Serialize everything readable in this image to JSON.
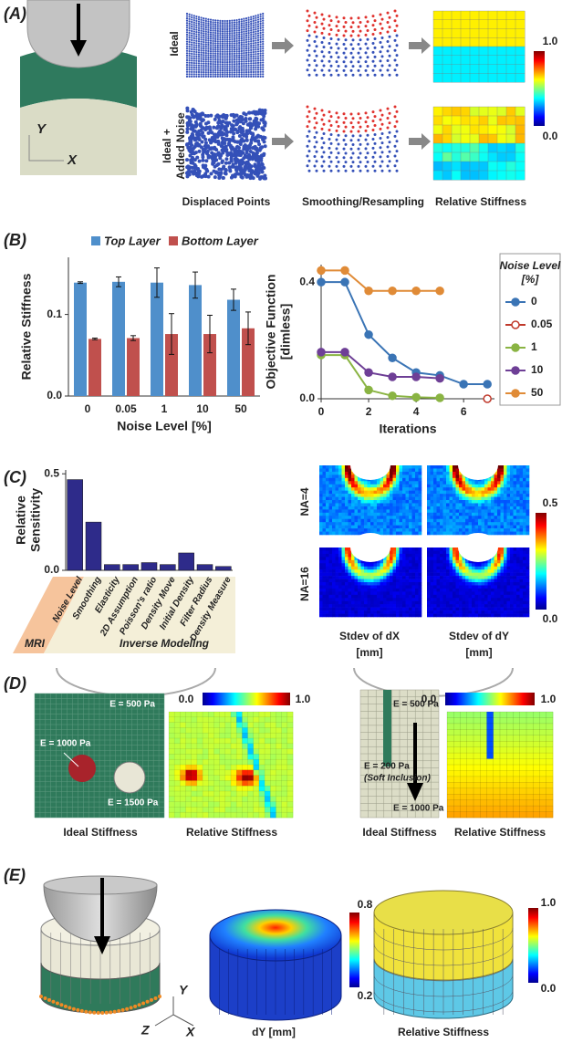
{
  "panels": {
    "A": {
      "letter": "(A)",
      "rows": [
        [
          "Ideal"
        ],
        [
          "Ideal +",
          "Added Noise"
        ]
      ],
      "columns": [
        "Displaced Points",
        "Smoothing/Resampling",
        "Relative Stiffness"
      ],
      "colorbar": [
        "1.0",
        "0.0"
      ],
      "axes": [
        "Y",
        "X"
      ]
    },
    "B": {
      "letter": "(B)"
    },
    "C": {
      "letter": "(C)",
      "rows": [
        "NA=4",
        "NA=16"
      ],
      "columns": [
        [
          "Stdev of dX",
          "[mm]"
        ],
        [
          "Stdev of dY",
          "[mm]"
        ]
      ],
      "colorbar": [
        "0.5",
        "0.0"
      ],
      "groups": [
        "MRI",
        "Inverse Modeling"
      ]
    },
    "D": {
      "letter": "(D)",
      "left": {
        "colorbar": [
          "0.0",
          "1.0"
        ],
        "annotations": [
          "E = 500 Pa",
          "E = 1000 Pa",
          "E = 1500 Pa"
        ],
        "columns": [
          "Ideal Stiffness",
          "Relative Stiffness"
        ]
      },
      "right": {
        "colorbar": [
          "0.0",
          "1.0"
        ],
        "annotations": [
          "E = 500 Pa",
          "E = 200 Pa",
          "(Soft Inclusion)",
          "E = 1000 Pa"
        ],
        "columns": [
          "Ideal Stiffness",
          "Relative Stiffness"
        ]
      }
    },
    "E": {
      "letter": "(E)",
      "axes": [
        "Y",
        "Z",
        "X"
      ],
      "dy_colorbar": [
        "0.8",
        "0.2"
      ],
      "dy_label": "dY [mm]",
      "stiffness_colorbar": [
        "1.0",
        "0.0"
      ],
      "stiffness_label": "Relative Stiffness"
    }
  },
  "chart_data": [
    {
      "type": "bar",
      "categories": [
        "0",
        "0.05",
        "1",
        "10",
        "50"
      ],
      "series": [
        {
          "name": "Top Layer",
          "color": "#4f8fcb",
          "values": [
            0.139,
            0.14,
            0.139,
            0.136,
            0.118
          ],
          "errors": [
            0.001,
            0.006,
            0.018,
            0.016,
            0.013
          ]
        },
        {
          "name": "Bottom Layer",
          "color": "#c0504d",
          "values": [
            0.07,
            0.071,
            0.076,
            0.076,
            0.083
          ],
          "errors": [
            0.001,
            0.003,
            0.025,
            0.023,
            0.02
          ]
        }
      ],
      "ylim": [
        0,
        0.17
      ],
      "yticks": [
        {
          "value": 0,
          "label": "0.0"
        },
        0.1
      ],
      "y_label": [
        "Relative Stiffness"
      ],
      "x_label": "Noise Level [%]"
    },
    {
      "type": "line",
      "legend_title": [
        "Noise Level",
        "[%]"
      ],
      "series": [
        {
          "name": "0",
          "color": "#3a74b5",
          "x": [
            0,
            1,
            2,
            3,
            4,
            5,
            6,
            7
          ],
          "values": [
            0.4,
            0.4,
            0.22,
            0.14,
            0.09,
            0.08,
            0.05,
            0.05
          ]
        },
        {
          "name": "0.05",
          "color": "#c0392b",
          "hollow": true,
          "x": [
            7
          ],
          "values": [
            0.0
          ]
        },
        {
          "name": "1",
          "color": "#8ab443",
          "x": [
            0,
            1,
            2,
            3,
            4,
            5
          ],
          "values": [
            0.15,
            0.15,
            0.03,
            0.01,
            0.005,
            0.003
          ]
        },
        {
          "name": "10",
          "color": "#6e3f96",
          "x": [
            0,
            1,
            2,
            3,
            4,
            5
          ],
          "values": [
            0.16,
            0.16,
            0.09,
            0.075,
            0.075,
            0.07
          ]
        },
        {
          "name": "50",
          "color": "#e08b37",
          "x": [
            0,
            1,
            2,
            3,
            4,
            5
          ],
          "values": [
            0.44,
            0.44,
            0.37,
            0.37,
            0.37,
            0.37
          ]
        }
      ],
      "xlim": [
        0,
        7.3
      ],
      "xticks": [
        0,
        2,
        4,
        6
      ],
      "ylim": [
        0,
        0.46
      ],
      "yticks": [
        {
          "value": 0,
          "label": "0.0"
        },
        0.4
      ],
      "y_label": [
        "Objective Function",
        "[dimless]"
      ],
      "x_label": "Iterations"
    },
    {
      "type": "bar",
      "color": "#2e2b8a",
      "categories": [
        "Noise Level",
        "Smoothing",
        "Elasticity",
        "2D Assumption",
        "Poisson's ratio",
        "Density Move",
        "Initial Density",
        "Filter Radius",
        "Density Measure"
      ],
      "values": [
        0.47,
        0.25,
        0.03,
        0.03,
        0.04,
        0.03,
        0.09,
        0.03,
        0.02
      ],
      "ylim": [
        0,
        0.52
      ],
      "yticks": [
        {
          "value": 0,
          "label": "0.0"
        },
        0.5
      ],
      "y_label": [
        "Relative",
        "Sensitivity"
      ]
    }
  ]
}
